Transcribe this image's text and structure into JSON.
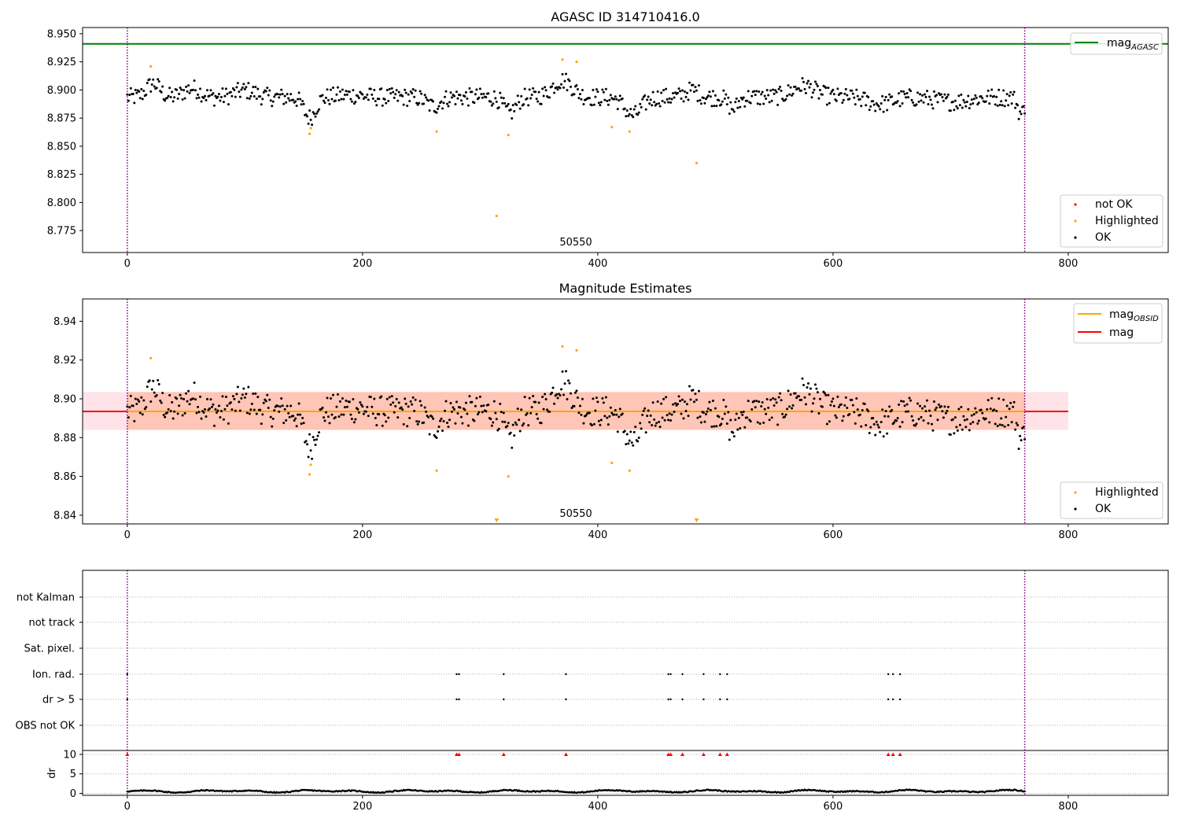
{
  "chart_data": [
    {
      "type": "scatter",
      "title": "AGASC ID 314710416.0",
      "xlim": [
        -38,
        885
      ],
      "ylim": [
        8.7555,
        8.9555
      ],
      "xticks": [
        "0",
        "200",
        "400",
        "600",
        "800"
      ],
      "yticks": [
        "8.775",
        "8.800",
        "8.825",
        "8.850",
        "8.875",
        "8.900",
        "8.925",
        "8.950"
      ],
      "obsid_label": "50550",
      "obsid_boundaries_x": [
        0,
        763
      ],
      "mag_agasc": 8.941,
      "mag_agasc_label": "mag",
      "mag_agasc_sub": "AGASC",
      "legend_top": "top-right",
      "legend_bottom": "bottom-right",
      "legend_series": [
        "not OK",
        "Highlighted",
        "OK"
      ],
      "highlighted_points": [
        [
          20,
          8.921
        ],
        [
          155,
          8.861
        ],
        [
          156,
          8.866
        ],
        [
          263,
          8.863
        ],
        [
          314,
          8.788
        ],
        [
          324,
          8.86
        ],
        [
          370,
          8.927
        ],
        [
          382,
          8.925
        ],
        [
          412,
          8.867
        ],
        [
          427,
          8.863
        ],
        [
          484,
          8.835
        ]
      ],
      "not_ok_points": []
    },
    {
      "type": "scatter",
      "title": "Magnitude Estimates",
      "xlim": [
        -38,
        885
      ],
      "ylim": [
        8.8355,
        8.9515
      ],
      "xticks": [
        "0",
        "200",
        "400",
        "600",
        "800"
      ],
      "yticks": [
        "8.84",
        "8.86",
        "8.88",
        "8.90",
        "8.92",
        "8.94"
      ],
      "obsid_label": "50550",
      "mag": 8.8935,
      "mag_band": [
        8.884,
        8.9035
      ],
      "mag_obsid": 8.8935,
      "mag_obsid_band": [
        8.884,
        8.9035
      ],
      "mag_obsid_xrange": [
        0,
        763
      ],
      "mag_band_xrange": [
        -38,
        800
      ],
      "legend_top": "top-right",
      "legend_bottom": "bottom-right",
      "legend_lines": [
        {
          "label": "mag",
          "sub": "OBSID",
          "color": "#ffa500"
        },
        {
          "label": "mag",
          "sub": "",
          "color": "#ff0000"
        }
      ],
      "legend_series": [
        "Highlighted",
        "OK"
      ],
      "offscale_x": [
        314,
        484
      ]
    },
    {
      "type": "scatter",
      "title": "",
      "xlim": [
        -38,
        885
      ],
      "xticks": [
        "0",
        "200",
        "400",
        "600",
        "800"
      ],
      "flag_rows": [
        "not Kalman",
        "not track",
        "Sat. pixel.",
        "Ion. rad.",
        "dr > 5",
        "OBS not OK"
      ],
      "flag_events_x": [
        0,
        280,
        282,
        320,
        373,
        460,
        462,
        472,
        490,
        504,
        510,
        647,
        651,
        657
      ],
      "dr_ylabel": "dr",
      "dr_yticks": [
        "0",
        "5",
        "10"
      ],
      "dr_ylim": [
        -0.5,
        11
      ],
      "dr_offscale_value": 10
    }
  ],
  "colors": {
    "ok": "#000000",
    "highlighted": "#ffa500",
    "not_ok": "#ff0000",
    "agasc_line": "#008000",
    "obsid_boundary": "#800080",
    "mag_band": "#ffc0cb",
    "mag_obsid_band": "#ffa07a"
  }
}
